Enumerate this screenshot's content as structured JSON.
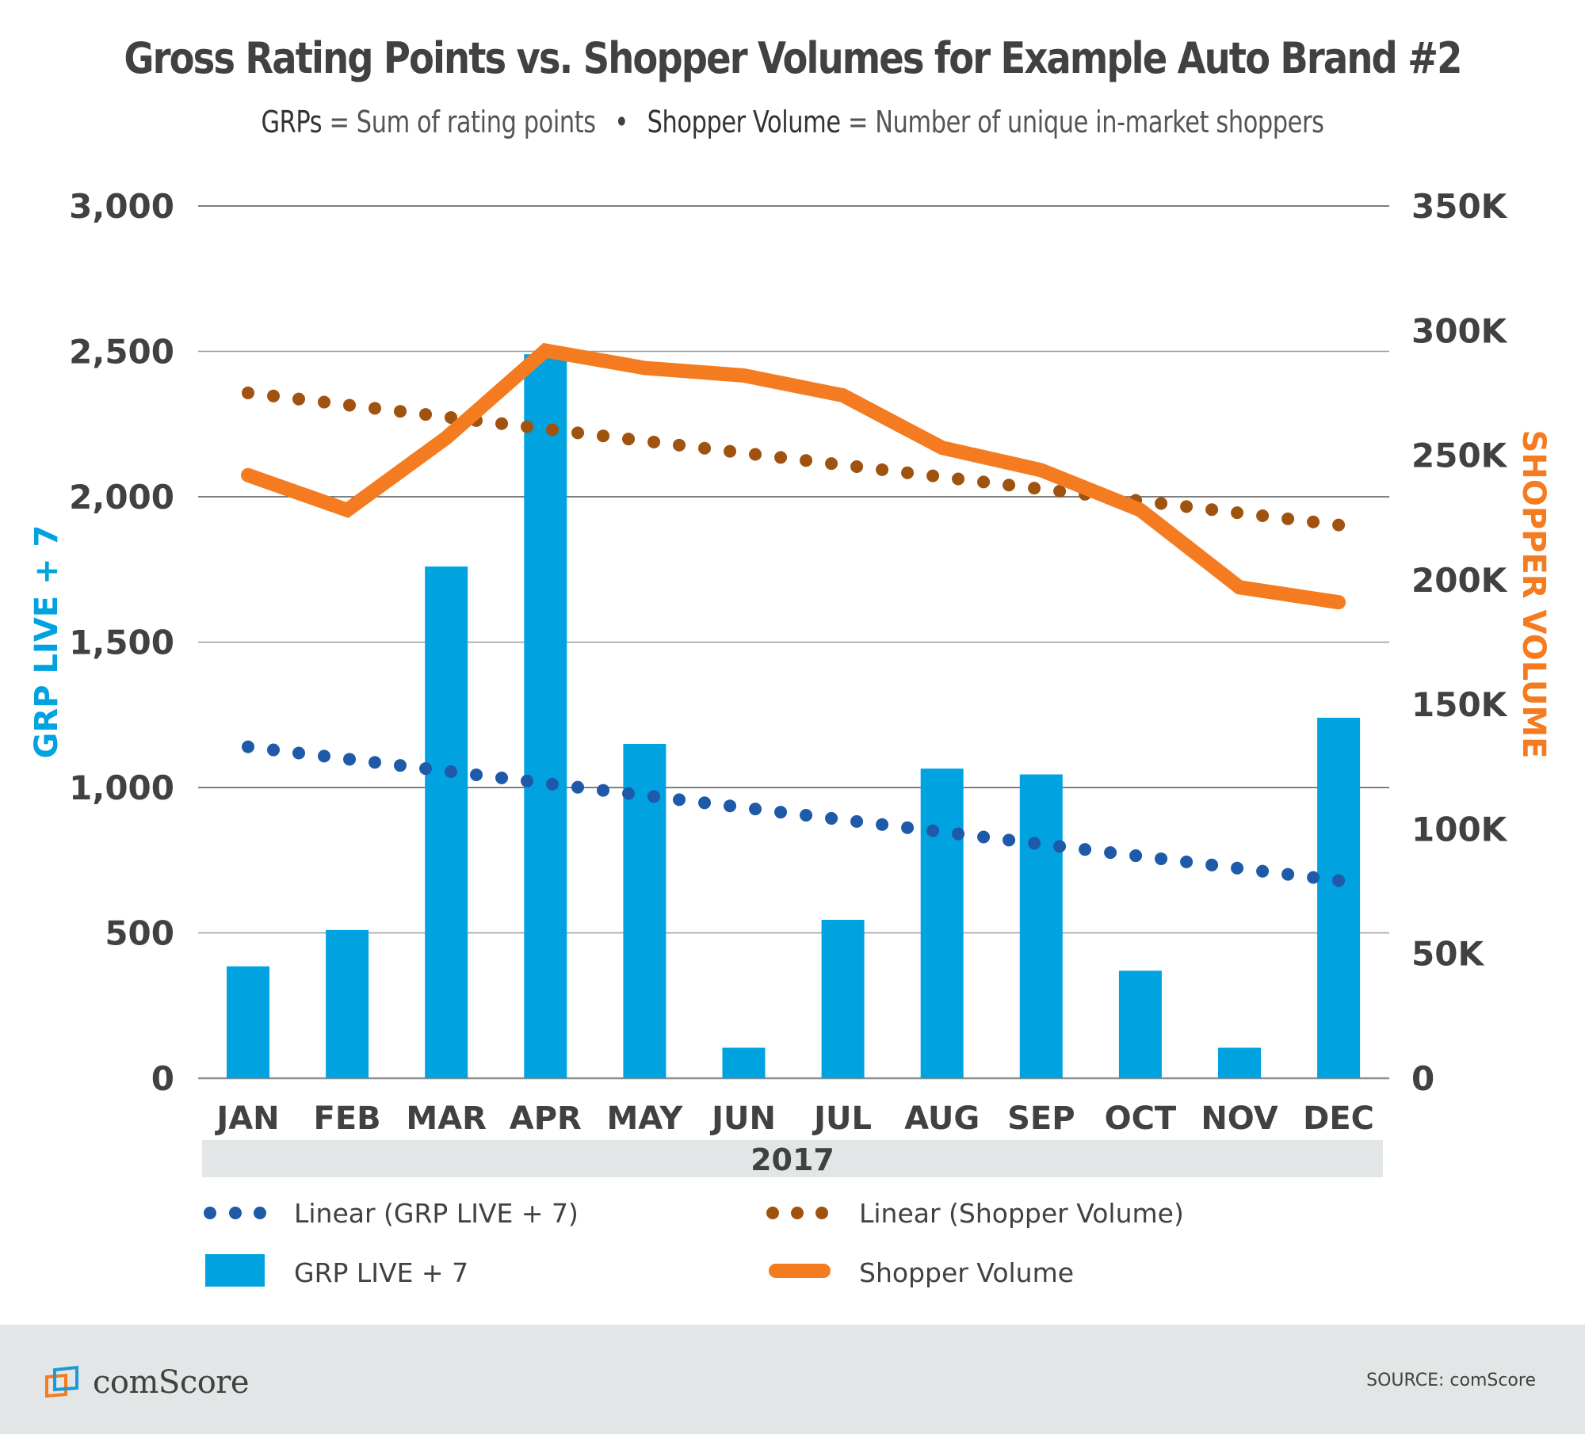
{
  "header": {
    "title": "Gross Rating Points vs. Shopper Volumes for Example Auto Brand #2",
    "subtitle_parts": {
      "grps_term": "GRPs",
      "grps_def": "= Sum of rating points",
      "separator": "•",
      "shopper_term": "Shopper Volume",
      "shopper_def": "= Number of unique in-market shoppers"
    }
  },
  "colors": {
    "grp_bar": "#00a3df",
    "grp_trend": "#1e5aa8",
    "shopper_line": "#f47b20",
    "shopper_trend": "#a0520f",
    "gridline": "#9a9a9a",
    "text": "#414141",
    "band": "#e3e6e6"
  },
  "chart_data": {
    "type": "bar",
    "title": "Gross Rating Points vs. Shopper Volumes for Example Auto Brand #2",
    "categories": [
      "JAN",
      "FEB",
      "MAR",
      "APR",
      "MAY",
      "JUN",
      "JUL",
      "AUG",
      "SEP",
      "OCT",
      "NOV",
      "DEC"
    ],
    "xlabel": "2017",
    "y_left": {
      "label": "GRP LIVE + 7",
      "range": [
        0,
        3000
      ],
      "ticks": [
        0,
        500,
        1000,
        1500,
        2000,
        2500,
        3000
      ],
      "tick_labels": [
        "0",
        "500",
        "1,000",
        "1,500",
        "2,000",
        "2,500",
        "3,000"
      ]
    },
    "y_right": {
      "label": "SHOPPER VOLUME",
      "range": [
        0,
        350000
      ],
      "ticks": [
        0,
        50000,
        100000,
        150000,
        200000,
        250000,
        300000,
        350000
      ],
      "tick_labels": [
        "0",
        "50K",
        "100K",
        "150K",
        "200K",
        "250K",
        "300K",
        "350K"
      ]
    },
    "grid": true,
    "series": [
      {
        "name": "GRP LIVE + 7",
        "type": "bar",
        "axis": "left",
        "values": [
          385,
          510,
          1760,
          2490,
          1150,
          105,
          545,
          1065,
          1045,
          370,
          105,
          1240
        ]
      },
      {
        "name": "Shopper Volume",
        "type": "line",
        "axis": "right",
        "values": [
          242000,
          228000,
          257000,
          292000,
          285000,
          282000,
          274000,
          253000,
          244000,
          228000,
          197000,
          191000
        ]
      },
      {
        "name": "Linear (GRP LIVE + 7)",
        "type": "trendline",
        "axis": "left",
        "start": 1140,
        "end": 680
      },
      {
        "name": "Linear (Shopper Volume)",
        "type": "trendline",
        "axis": "right",
        "start": 275000,
        "end": 222000
      }
    ],
    "legend": {
      "placement": "bottom",
      "items": [
        {
          "label": "Linear (GRP LIVE + 7)",
          "marker": "dots",
          "color_key": "grp_trend"
        },
        {
          "label": "Linear (Shopper Volume)",
          "marker": "dots",
          "color_key": "shopper_trend"
        },
        {
          "label": "GRP LIVE + 7",
          "marker": "square",
          "color_key": "grp_bar"
        },
        {
          "label": "Shopper Volume",
          "marker": "line",
          "color_key": "shopper_line"
        }
      ]
    }
  },
  "footer": {
    "logo_text": "comScore",
    "logo_icon": "comscore-screens-icon",
    "source": "SOURCE: comScore"
  }
}
